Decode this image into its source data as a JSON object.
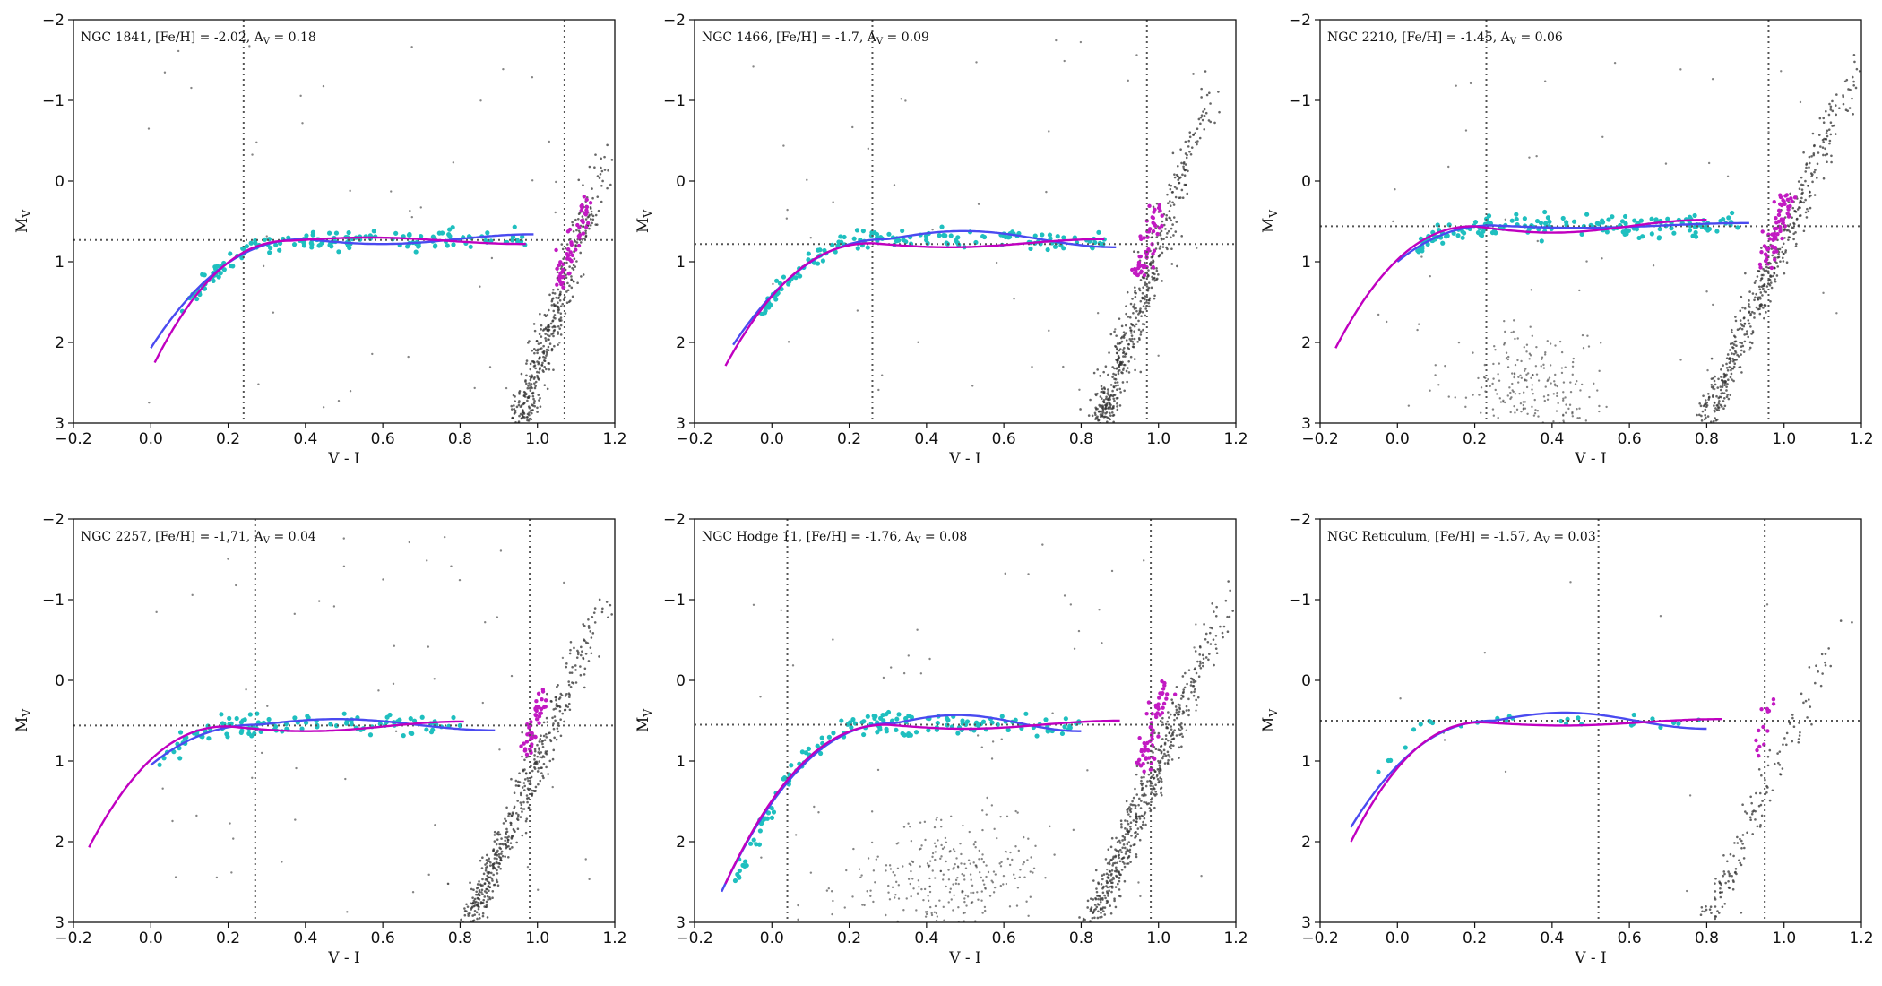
{
  "colors": {
    "hb_points": "#1fbfbf",
    "rgb_points": "#c21ac2",
    "field_points": "#333333",
    "fit_blue": "#4a4af0",
    "fit_magenta": "#c000c0",
    "guide_lines": "#555555"
  },
  "chart_data": [
    {
      "type": "scatter",
      "cluster": "NGC 1841",
      "feh": "-2.02",
      "av": "0.18",
      "xlabel": "V - I",
      "ylabel": "M",
      "ylabel_sub": "V",
      "xlim": [
        -0.2,
        1.2
      ],
      "ylim": [
        3,
        -2
      ],
      "xticks": [
        -0.2,
        0.0,
        0.2,
        0.4,
        0.6,
        0.8,
        1.0,
        1.2
      ],
      "yticks": [
        -2,
        -1,
        0,
        1,
        2,
        3
      ],
      "vlines": [
        0.24,
        1.07
      ],
      "hline": 0.73,
      "hb": {
        "x0": 0.08,
        "x1": 0.97,
        "knee": 0.36,
        "level": 0.73,
        "faint": 1.65,
        "n": 160,
        "spread": 0.06
      },
      "rgb": {
        "mag_top": 0.25,
        "mag_bottom": 1.3,
        "x_top": 1.13,
        "x_bottom": 1.05,
        "n": 60
      },
      "field": {
        "rgb_bottom": [
          0.95,
          3.0
        ],
        "rgb_top": [
          1.2,
          -0.6
        ],
        "n_rgb": 420,
        "n_sparse": 40,
        "blob": null
      },
      "fit_blue": {
        "x0": 0.0,
        "x1": 0.99,
        "knee": 0.4,
        "level": 0.72,
        "faint": 2.07,
        "wiggle": 0.06
      },
      "fit_magenta": {
        "x0": 0.01,
        "x1": 0.97,
        "knee": 0.36,
        "level": 0.74,
        "faint": 2.25,
        "wiggle": -0.04
      }
    },
    {
      "type": "scatter",
      "cluster": "NGC 1466",
      "feh": "-1.7",
      "av": "0.09",
      "xlabel": "V - I",
      "ylabel": "M",
      "ylabel_sub": "V",
      "xlim": [
        -0.2,
        1.2
      ],
      "ylim": [
        3,
        -2
      ],
      "xticks": [
        -0.2,
        0.0,
        0.2,
        0.4,
        0.6,
        0.8,
        1.0,
        1.2
      ],
      "yticks": [
        -2,
        -1,
        0,
        1,
        2,
        3
      ],
      "vlines": [
        0.26,
        0.97
      ],
      "hline": 0.78,
      "hb": {
        "x0": -0.05,
        "x1": 0.86,
        "knee": 0.26,
        "level": 0.72,
        "faint": 1.8,
        "n": 150,
        "spread": 0.06
      },
      "rgb": {
        "mag_top": 0.3,
        "mag_bottom": 1.2,
        "x_top": 1.0,
        "x_bottom": 0.95,
        "n": 55
      },
      "field": {
        "rgb_bottom": [
          0.85,
          3.0
        ],
        "rgb_top": [
          1.15,
          -1.4
        ],
        "n_rgb": 500,
        "n_sparse": 40,
        "blob": null
      },
      "fit_blue": {
        "x0": -0.1,
        "x1": 0.89,
        "knee": 0.3,
        "level": 0.72,
        "faint": 2.03,
        "wiggle": -0.1
      },
      "fit_magenta": {
        "x0": -0.12,
        "x1": 0.86,
        "knee": 0.26,
        "level": 0.77,
        "faint": 2.29,
        "wiggle": 0.05
      }
    },
    {
      "type": "scatter",
      "cluster": "NGC 2210",
      "feh": "-1.45",
      "av": "0.06",
      "xlabel": "V - I",
      "ylabel": "M",
      "ylabel_sub": "V",
      "xlim": [
        -0.2,
        1.2
      ],
      "ylim": [
        3,
        -2
      ],
      "xticks": [
        -0.2,
        0.0,
        0.2,
        0.4,
        0.6,
        0.8,
        1.0,
        1.2
      ],
      "yticks": [
        -2,
        -1,
        0,
        1,
        2,
        3
      ],
      "vlines": [
        0.23,
        0.96
      ],
      "hline": 0.56,
      "hb": {
        "x0": 0.05,
        "x1": 0.88,
        "knee": 0.25,
        "level": 0.55,
        "faint": 0.85,
        "n": 170,
        "spread": 0.07
      },
      "rgb": {
        "mag_top": 0.15,
        "mag_bottom": 1.05,
        "x_top": 1.01,
        "x_bottom": 0.95,
        "n": 70
      },
      "field": {
        "rgb_bottom": [
          0.8,
          3.0
        ],
        "rgb_top": [
          1.2,
          -1.6
        ],
        "n_rgb": 480,
        "n_sparse": 45,
        "blob": {
          "cx": 0.33,
          "cy": 2.55,
          "sx": 0.1,
          "sy": 0.35,
          "n": 230
        }
      },
      "fit_blue": {
        "x0": 0.0,
        "x1": 0.91,
        "knee": 0.25,
        "level": 0.55,
        "faint": 1.0,
        "wiggle": 0.03
      },
      "fit_magenta": {
        "x0": -0.16,
        "x1": 0.8,
        "knee": 0.2,
        "level": 0.56,
        "faint": 2.07,
        "wiggle": 0.08
      }
    },
    {
      "type": "scatter",
      "cluster": "NGC 2257",
      "feh": "-1.71",
      "av": "0.04",
      "xlabel": "V - I",
      "ylabel": "M",
      "ylabel_sub": "V",
      "xlim": [
        -0.2,
        1.2
      ],
      "ylim": [
        3,
        -2
      ],
      "xticks": [
        -0.2,
        0.0,
        0.2,
        0.4,
        0.6,
        0.8,
        1.0,
        1.2
      ],
      "yticks": [
        -2,
        -1,
        0,
        1,
        2,
        3
      ],
      "vlines": [
        0.27,
        0.98
      ],
      "hline": 0.56,
      "hb": {
        "x0": 0.02,
        "x1": 0.8,
        "knee": 0.22,
        "level": 0.55,
        "faint": 1.1,
        "n": 110,
        "spread": 0.07
      },
      "rgb": {
        "mag_top": 0.15,
        "mag_bottom": 0.95,
        "x_top": 1.01,
        "x_bottom": 0.97,
        "n": 50
      },
      "field": {
        "rgb_bottom": [
          0.83,
          3.0
        ],
        "rgb_top": [
          1.2,
          -1.4
        ],
        "n_rgb": 480,
        "n_sparse": 60,
        "blob": null
      },
      "fit_blue": {
        "x0": 0.0,
        "x1": 0.89,
        "knee": 0.28,
        "level": 0.55,
        "faint": 1.05,
        "wiggle": -0.07
      },
      "fit_magenta": {
        "x0": -0.16,
        "x1": 0.81,
        "knee": 0.2,
        "level": 0.57,
        "faint": 2.07,
        "wiggle": 0.06
      }
    },
    {
      "type": "scatter",
      "cluster": "NGC Hodge 11",
      "feh": "-1.76",
      "av": "0.08",
      "xlabel": "V - I",
      "ylabel": "M",
      "ylabel_sub": "V",
      "xlim": [
        -0.2,
        1.2
      ],
      "ylim": [
        3,
        -2
      ],
      "xticks": [
        -0.2,
        0.0,
        0.2,
        0.4,
        0.6,
        0.8,
        1.0,
        1.2
      ],
      "yticks": [
        -2,
        -1,
        0,
        1,
        2,
        3
      ],
      "vlines": [
        0.04,
        0.98
      ],
      "hline": 0.55,
      "hb": {
        "x0": -0.1,
        "x1": 0.8,
        "knee": 0.25,
        "level": 0.55,
        "faint": 2.6,
        "n": 150,
        "spread": 0.07
      },
      "rgb": {
        "mag_top": 0.05,
        "mag_bottom": 1.1,
        "x_top": 1.01,
        "x_bottom": 0.96,
        "n": 60
      },
      "field": {
        "rgb_bottom": [
          0.83,
          3.0
        ],
        "rgb_top": [
          1.2,
          -1.3
        ],
        "n_rgb": 520,
        "n_sparse": 60,
        "blob": {
          "cx": 0.45,
          "cy": 2.45,
          "sx": 0.13,
          "sy": 0.35,
          "n": 280
        }
      },
      "fit_blue": {
        "x0": -0.13,
        "x1": 0.8,
        "knee": 0.32,
        "level": 0.53,
        "faint": 2.62,
        "wiggle": -0.1
      },
      "fit_magenta": {
        "x0": -0.12,
        "x1": 0.9,
        "knee": 0.3,
        "level": 0.55,
        "faint": 2.52,
        "wiggle": 0.05
      }
    },
    {
      "type": "scatter",
      "cluster": "NGC Reticulum",
      "feh": "-1.57",
      "av": "0.03",
      "xlabel": "V - I",
      "ylabel": "M",
      "ylabel_sub": "V",
      "xlim": [
        -0.2,
        1.2
      ],
      "ylim": [
        3,
        -2
      ],
      "xticks": [
        -0.2,
        0.0,
        0.2,
        0.4,
        0.6,
        0.8,
        1.0,
        1.2
      ],
      "yticks": [
        -2,
        -1,
        0,
        1,
        2,
        3
      ],
      "vlines": [
        0.52,
        0.95
      ],
      "hline": 0.5,
      "hb": {
        "x0": -0.08,
        "x1": 0.8,
        "knee": 0.15,
        "level": 0.5,
        "faint": 1.4,
        "n": 28,
        "spread": 0.06
      },
      "rgb": {
        "mag_top": 0.3,
        "mag_bottom": 1.0,
        "x_top": 0.97,
        "x_bottom": 0.93,
        "n": 14
      },
      "field": {
        "rgb_bottom": [
          0.8,
          3.0
        ],
        "rgb_top": [
          1.15,
          -0.8
        ],
        "n_rgb": 150,
        "n_sparse": 10,
        "blob": null
      },
      "fit_blue": {
        "x0": -0.12,
        "x1": 0.8,
        "knee": 0.25,
        "level": 0.5,
        "faint": 1.82,
        "wiggle": -0.1
      },
      "fit_magenta": {
        "x0": -0.12,
        "x1": 0.84,
        "knee": 0.22,
        "level": 0.52,
        "faint": 2.0,
        "wiggle": 0.04
      }
    }
  ]
}
